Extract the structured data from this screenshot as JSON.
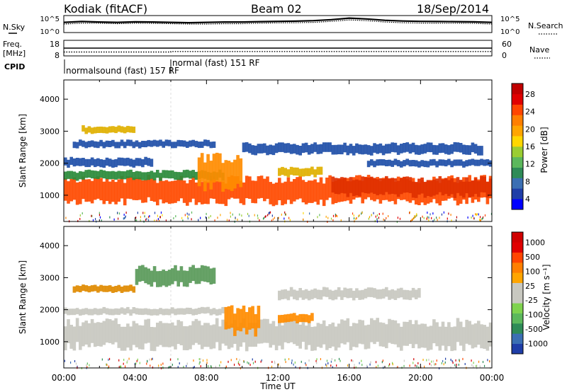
{
  "header": {
    "station": "Kodiak (fitACF)",
    "beam": "Beam 02",
    "date": "18/Sep/2014"
  },
  "chart_data": [
    {
      "type": "line",
      "panel": "noise",
      "left_labels": [
        "N.Sky"
      ],
      "right_labels": [
        "N.Search"
      ],
      "left_ticks": [
        "10^5",
        "10^0"
      ],
      "right_ticks": [
        "10^5",
        "10^0"
      ],
      "series": [
        {
          "name": "N.Sky",
          "x": [
            0,
            1,
            2,
            3,
            4,
            5,
            6,
            7,
            8,
            9,
            10,
            11,
            12,
            13,
            14,
            15,
            16,
            17,
            18,
            19,
            20,
            21,
            22,
            23,
            24
          ],
          "values": [
            0.6,
            0.65,
            0.62,
            0.6,
            0.63,
            0.62,
            0.6,
            0.58,
            0.6,
            0.62,
            0.62,
            0.64,
            0.66,
            0.67,
            0.7,
            0.76,
            0.85,
            0.8,
            0.72,
            0.68,
            0.66,
            0.65,
            0.64,
            0.63,
            0.6
          ]
        },
        {
          "name": "N.Search",
          "x": [
            0,
            1,
            2,
            3,
            4,
            5,
            6,
            7,
            8,
            9,
            10,
            11,
            12,
            13,
            14,
            15,
            16,
            17,
            18,
            19,
            20,
            21,
            22,
            23,
            24
          ],
          "values": [
            0.5,
            0.55,
            0.55,
            0.52,
            0.55,
            0.54,
            0.52,
            0.5,
            0.5,
            0.52,
            0.52,
            0.55,
            0.57,
            0.58,
            0.6,
            0.66,
            0.74,
            0.7,
            0.62,
            0.58,
            0.56,
            0.55,
            0.55,
            0.54,
            0.5
          ]
        }
      ]
    },
    {
      "type": "line",
      "panel": "freq",
      "left_labels": [
        "Freq.",
        "[MHz]"
      ],
      "right_labels": [
        "Nave"
      ],
      "left_ticks": [
        "18",
        "8"
      ],
      "right_ticks": [
        "60",
        "0"
      ],
      "series": [
        {
          "name": "Freq.",
          "x": [
            0,
            6,
            6,
            24
          ],
          "values": [
            10.5,
            10.5,
            10.8,
            10.8
          ]
        },
        {
          "name": "Nave",
          "x": [
            0,
            24
          ],
          "values": [
            30,
            30
          ]
        }
      ]
    },
    {
      "type": "table",
      "panel": "cpid",
      "label": "CPID",
      "programs": [
        "normalsound (fast) 157 RF",
        "normal (fast) 151 RF"
      ],
      "x_start": [
        0,
        6
      ]
    },
    {
      "type": "heatmap",
      "panel": "power",
      "ylabel": "Slant Range [km]",
      "yticks": [
        1000,
        2000,
        3000,
        4000
      ],
      "ylim": [
        180,
        4600
      ],
      "xlim": [
        0,
        24
      ],
      "colorbar": {
        "label": "Power [dB]",
        "ticks": [
          "28",
          "24",
          "20",
          "16",
          "12",
          "8",
          "4"
        ],
        "colors": [
          "#0000ff",
          "#1f3ea8",
          "#3b6fb3",
          "#2e8b57",
          "#5cb85c",
          "#9acd32",
          "#ffd700",
          "#ffa500",
          "#ff7f00",
          "#ff4500",
          "#e00000",
          "#c00000"
        ]
      },
      "bands": [
        {
          "x0": 0,
          "x1": 24,
          "y0": 800,
          "y1": 1500,
          "color": "#ff4a00"
        },
        {
          "x0": 0,
          "x1": 9,
          "y0": 1500,
          "y1": 1750,
          "color": "#2a8a3a"
        },
        {
          "x0": 0,
          "x1": 5,
          "y0": 1900,
          "y1": 2150,
          "color": "#1f4fa8"
        },
        {
          "x0": 0.5,
          "x1": 8.5,
          "y0": 2500,
          "y1": 2700,
          "color": "#1f4fa8"
        },
        {
          "x0": 1,
          "x1": 4,
          "y0": 2950,
          "y1": 3150,
          "color": "#e0b000"
        },
        {
          "x0": 7.5,
          "x1": 10,
          "y0": 1250,
          "y1": 2150,
          "color": "#ff8c00"
        },
        {
          "x0": 12,
          "x1": 14.5,
          "y0": 1600,
          "y1": 1850,
          "color": "#e0b000"
        },
        {
          "x0": 10,
          "x1": 23.5,
          "y0": 2300,
          "y1": 2600,
          "color": "#1f4fa8"
        },
        {
          "x0": 17,
          "x1": 24,
          "y0": 1900,
          "y1": 2100,
          "color": "#1f4fa8"
        },
        {
          "x0": 15,
          "x1": 24,
          "y0": 1000,
          "y1": 1500,
          "color": "#e03000"
        }
      ]
    },
    {
      "type": "heatmap",
      "panel": "velocity",
      "ylabel": "Slant Range [km]",
      "yticks": [
        1000,
        2000,
        3000,
        4000
      ],
      "ylim": [
        180,
        4600
      ],
      "xlim": [
        0,
        24
      ],
      "xlabel": "Time UT",
      "xticks": [
        "00:00",
        "04:00",
        "08:00",
        "12:00",
        "16:00",
        "20:00",
        "00:00"
      ],
      "colorbar": {
        "label": "Velocity [m s⁻¹]",
        "ticks": [
          "1000",
          "500",
          "100",
          "25",
          "-25",
          "-100",
          "-500",
          "-1000"
        ],
        "colors": [
          "#1f3ea8",
          "#3b6fb3",
          "#2e8b57",
          "#5cb85c",
          "#7fd34e",
          "#c8c8c0",
          "#c8c8c0",
          "#ffa500",
          "#ff7f00",
          "#ff4500",
          "#e00000",
          "#d00000"
        ]
      },
      "bands": [
        {
          "x0": 0,
          "x1": 24,
          "y0": 850,
          "y1": 1600,
          "color": "#c8c8c0"
        },
        {
          "x0": 0,
          "x1": 9,
          "y0": 1850,
          "y1": 2050,
          "color": "#c8c8c0"
        },
        {
          "x0": 0.5,
          "x1": 4,
          "y0": 2550,
          "y1": 2750,
          "color": "#e08a00"
        },
        {
          "x0": 4,
          "x1": 8.5,
          "y0": 2800,
          "y1": 3300,
          "color": "#5a9a5a"
        },
        {
          "x0": 9,
          "x1": 11,
          "y0": 1300,
          "y1": 2000,
          "color": "#ff8c00"
        },
        {
          "x0": 12,
          "x1": 14,
          "y0": 1600,
          "y1": 1850,
          "color": "#ff8c00"
        },
        {
          "x0": 12,
          "x1": 20,
          "y0": 2350,
          "y1": 2650,
          "color": "#c8c8c0"
        }
      ]
    }
  ]
}
